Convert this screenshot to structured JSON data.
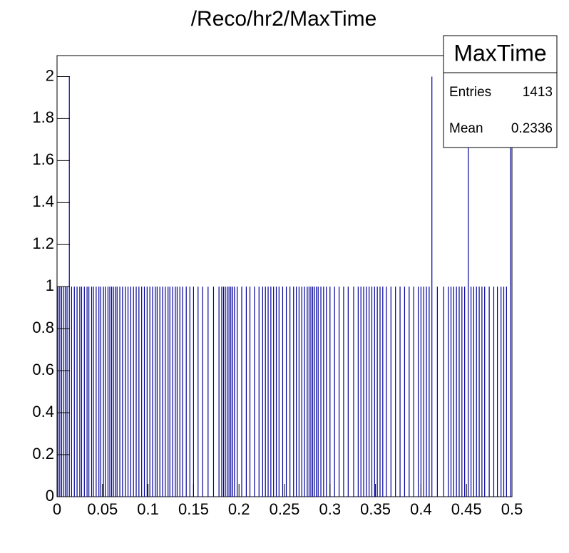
{
  "chart_data": {
    "type": "spike",
    "title": "/Reco/hr2/MaxTime",
    "color": "#000099",
    "x": [
      0.001,
      0.003,
      0.005,
      0.007,
      0.009,
      0.011,
      0.0135,
      0.016,
      0.019,
      0.022,
      0.025,
      0.027,
      0.03,
      0.033,
      0.035,
      0.038,
      0.04,
      0.043,
      0.046,
      0.048,
      0.051,
      0.053,
      0.056,
      0.058,
      0.06,
      0.062,
      0.064,
      0.066,
      0.069,
      0.072,
      0.075,
      0.078,
      0.081,
      0.084,
      0.087,
      0.09,
      0.093,
      0.096,
      0.099,
      0.102,
      0.105,
      0.108,
      0.11,
      0.113,
      0.116,
      0.119,
      0.122,
      0.124,
      0.127,
      0.13,
      0.132,
      0.135,
      0.138,
      0.142,
      0.146,
      0.15,
      0.155,
      0.16,
      0.166,
      0.172,
      0.178,
      0.181,
      0.183,
      0.185,
      0.187,
      0.189,
      0.191,
      0.193,
      0.195,
      0.198,
      0.203,
      0.208,
      0.212,
      0.217,
      0.222,
      0.226,
      0.229,
      0.232,
      0.235,
      0.238,
      0.241,
      0.244,
      0.248,
      0.252,
      0.256,
      0.26,
      0.263,
      0.266,
      0.269,
      0.272,
      0.275,
      0.277,
      0.279,
      0.281,
      0.283,
      0.285,
      0.287,
      0.29,
      0.293,
      0.296,
      0.3,
      0.305,
      0.31,
      0.315,
      0.32,
      0.326,
      0.331,
      0.334,
      0.337,
      0.34,
      0.343,
      0.346,
      0.349,
      0.352,
      0.355,
      0.358,
      0.362,
      0.367,
      0.372,
      0.377,
      0.382,
      0.387,
      0.392,
      0.397,
      0.4,
      0.403,
      0.406,
      0.409,
      0.412,
      0.418,
      0.425,
      0.43,
      0.433,
      0.436,
      0.439,
      0.442,
      0.445,
      0.448,
      0.452,
      0.455,
      0.458,
      0.461,
      0.464,
      0.467,
      0.47,
      0.475,
      0.48,
      0.484,
      0.488,
      0.491,
      0.494,
      0.4985
    ],
    "values": [
      1,
      1,
      1,
      1,
      1,
      1,
      2,
      1,
      1,
      1,
      1,
      1,
      1,
      1,
      1,
      1,
      1,
      1,
      1,
      1,
      1,
      1,
      1,
      1,
      1,
      1,
      1,
      1,
      1,
      1,
      1,
      1,
      1,
      1,
      1,
      1,
      1,
      1,
      1,
      1,
      1,
      1,
      1,
      1,
      1,
      1,
      1,
      1,
      1,
      1,
      1,
      1,
      1,
      1,
      1,
      1,
      1,
      1,
      1,
      1,
      1,
      1,
      1,
      1,
      1,
      1,
      1,
      1,
      1,
      1,
      1,
      1,
      1,
      1,
      1,
      1,
      1,
      1,
      1,
      1,
      1,
      1,
      1,
      1,
      1,
      1,
      1,
      1,
      1,
      1,
      1,
      1,
      1,
      1,
      1,
      1,
      1,
      1,
      1,
      1,
      1,
      1,
      1,
      1,
      1,
      1,
      1,
      1,
      1,
      1,
      1,
      1,
      1,
      1,
      1,
      1,
      1,
      1,
      1,
      1,
      1,
      1,
      1,
      1,
      1,
      1,
      1,
      1,
      2,
      1,
      1,
      1,
      1,
      1,
      1,
      1,
      1,
      1,
      2,
      1,
      1,
      1,
      1,
      1,
      1,
      1,
      1,
      1,
      1,
      1,
      1,
      2
    ],
    "xlim": [
      0,
      0.5
    ],
    "xticks": [
      0,
      0.05,
      0.1,
      0.15,
      0.2,
      0.25,
      0.3,
      0.35,
      0.4,
      0.45,
      0.5
    ],
    "ylim": [
      0,
      2.1
    ],
    "yticks": [
      0,
      0.2,
      0.4,
      0.6,
      0.8,
      1,
      1.2,
      1.4,
      1.6,
      1.8,
      2
    ],
    "stats": {
      "title": "MaxTime",
      "entries_label": "Entries",
      "entries": 1413,
      "mean_label": "Mean",
      "mean": 0.2336
    }
  }
}
